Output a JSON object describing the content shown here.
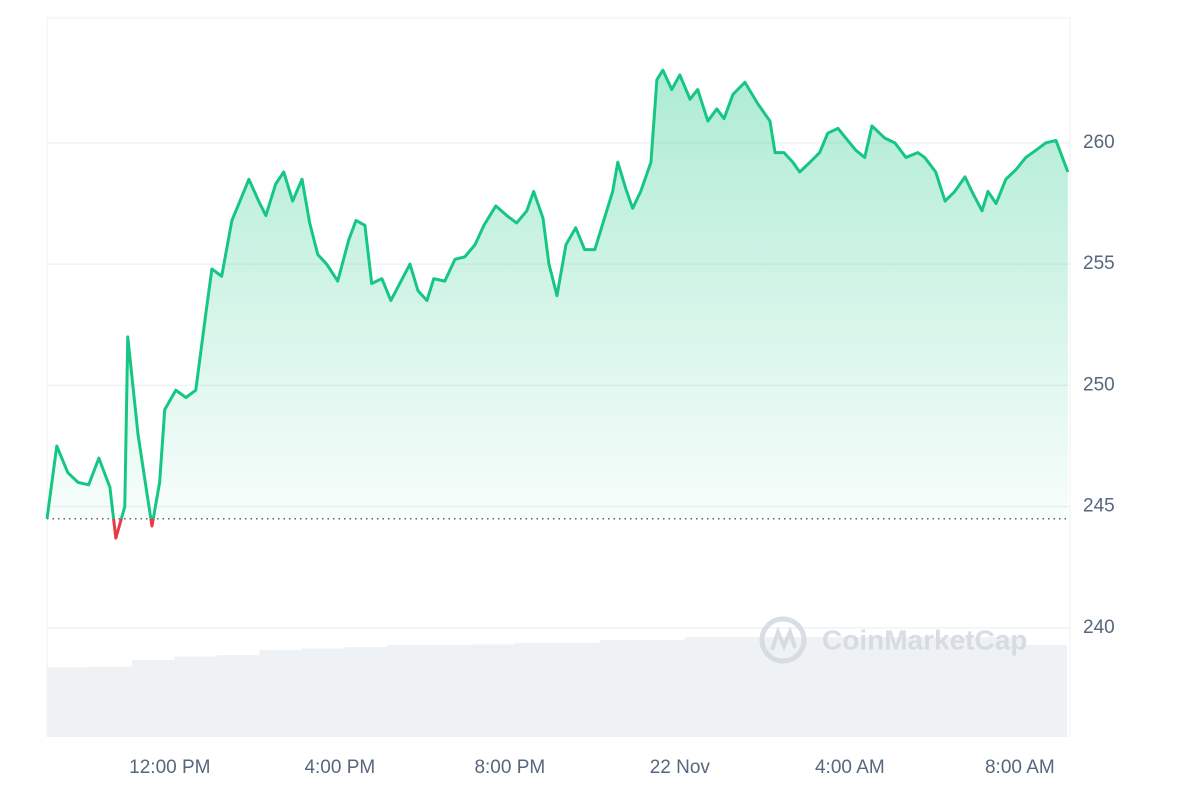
{
  "chart_data": {
    "type": "line",
    "x": [
      9.11,
      9.34,
      9.6,
      9.84,
      10.09,
      10.33,
      10.59,
      10.73,
      10.94,
      11.01,
      11.25,
      11.44,
      11.58,
      11.76,
      11.88,
      12.14,
      12.38,
      12.61,
      12.85,
      12.99,
      13.22,
      13.46,
      13.65,
      13.86,
      14.09,
      14.26,
      14.49,
      14.68,
      14.89,
      15.11,
      15.29,
      15.48,
      15.69,
      15.95,
      16.21,
      16.38,
      16.59,
      16.75,
      16.99,
      17.2,
      17.41,
      17.65,
      17.84,
      18.05,
      18.21,
      18.47,
      18.71,
      18.94,
      19.18,
      19.39,
      19.67,
      19.93,
      20.16,
      20.4,
      20.56,
      20.78,
      20.92,
      21.11,
      21.32,
      21.55,
      21.76,
      22.0,
      22.21,
      22.42,
      22.54,
      22.73,
      22.89,
      23.08,
      23.32,
      23.46,
      23.6,
      23.81,
      24.0,
      24.24,
      24.42,
      24.66,
      24.87,
      25.04,
      25.25,
      25.53,
      25.84,
      26.12,
      26.24,
      26.45,
      26.66,
      26.82,
      27.06,
      27.29,
      27.48,
      27.72,
      27.95,
      28.14,
      28.35,
      28.52,
      28.82,
      29.06,
      29.32,
      29.6,
      29.76,
      30.02,
      30.24,
      30.47,
      30.71,
      30.87,
      31.11,
      31.25,
      31.44,
      31.67,
      31.91,
      32.14,
      32.38,
      32.61,
      32.85,
      33.13
    ],
    "series": [
      {
        "color": "#16c784",
        "down_color": "#ea3943",
        "values": [
          244.5,
          247.5,
          246.4,
          246.0,
          245.9,
          247.0,
          245.8,
          243.7,
          245.0,
          252.0,
          248.0,
          245.8,
          244.2,
          246.0,
          249.0,
          249.8,
          249.5,
          249.8,
          253.0,
          254.8,
          254.5,
          256.8,
          257.6,
          258.5,
          257.6,
          257.0,
          258.3,
          258.8,
          257.6,
          258.5,
          256.7,
          255.4,
          255.0,
          254.3,
          256.0,
          256.8,
          256.6,
          254.2,
          254.4,
          253.5,
          254.2,
          255.0,
          253.9,
          253.5,
          254.4,
          254.3,
          255.2,
          255.3,
          255.8,
          256.6,
          257.4,
          257.0,
          256.7,
          257.2,
          258.0,
          256.9,
          255.0,
          253.7,
          255.8,
          256.5,
          255.6,
          255.6,
          256.8,
          258.0,
          259.2,
          258.1,
          257.3,
          258.0,
          259.2,
          262.6,
          263.0,
          262.2,
          262.8,
          261.8,
          262.2,
          260.9,
          261.4,
          261.0,
          262.0,
          262.5,
          261.6,
          260.9,
          259.6,
          259.6,
          259.2,
          258.8,
          259.2,
          259.6,
          260.4,
          260.6,
          260.1,
          259.7,
          259.4,
          260.7,
          260.2,
          260.0,
          259.4,
          259.6,
          259.4,
          258.8,
          257.6,
          258.0,
          258.6,
          258.0,
          257.2,
          258.0,
          257.5,
          258.5,
          258.9,
          259.4,
          259.7,
          260.0,
          260.1,
          258.8
        ]
      }
    ],
    "reference_line": 244.5,
    "volume": {
      "color": "#eff2f5",
      "x": [
        9.11,
        10.11,
        11.11,
        12.11,
        13.11,
        14.11,
        15.11,
        16.11,
        17.11,
        18.11,
        19.11,
        20.11,
        21.11,
        22.11,
        23.11,
        24.11,
        25.11,
        26.11,
        27.11,
        28.11,
        29.11,
        30.11,
        31.11,
        32.11
      ],
      "values": [
        9.7,
        9.8,
        10.7,
        11.2,
        11.4,
        12.1,
        12.3,
        12.5,
        12.8,
        12.8,
        12.9,
        13.1,
        13.1,
        13.5,
        13.5,
        13.9,
        13.9,
        13.9,
        13.9,
        13.9,
        13.9,
        13.9,
        13.9,
        12.8
      ]
    },
    "xlim": [
      9.11,
      33.18
    ],
    "xticks": [
      {
        "value": 12,
        "label": "12:00 PM"
      },
      {
        "value": 16,
        "label": "4:00 PM"
      },
      {
        "value": 20,
        "label": "8:00 PM"
      },
      {
        "value": 24,
        "label": "22 Nov"
      },
      {
        "value": 28,
        "label": "4:00 AM"
      },
      {
        "value": 32,
        "label": "8:00 AM"
      }
    ],
    "ylim": [
      235.5,
      265.15
    ],
    "yticks": [
      240,
      245,
      250,
      255,
      260
    ],
    "y2lim": [
      0,
      100
    ],
    "grid": true,
    "watermark": "CoinMarketCap"
  }
}
